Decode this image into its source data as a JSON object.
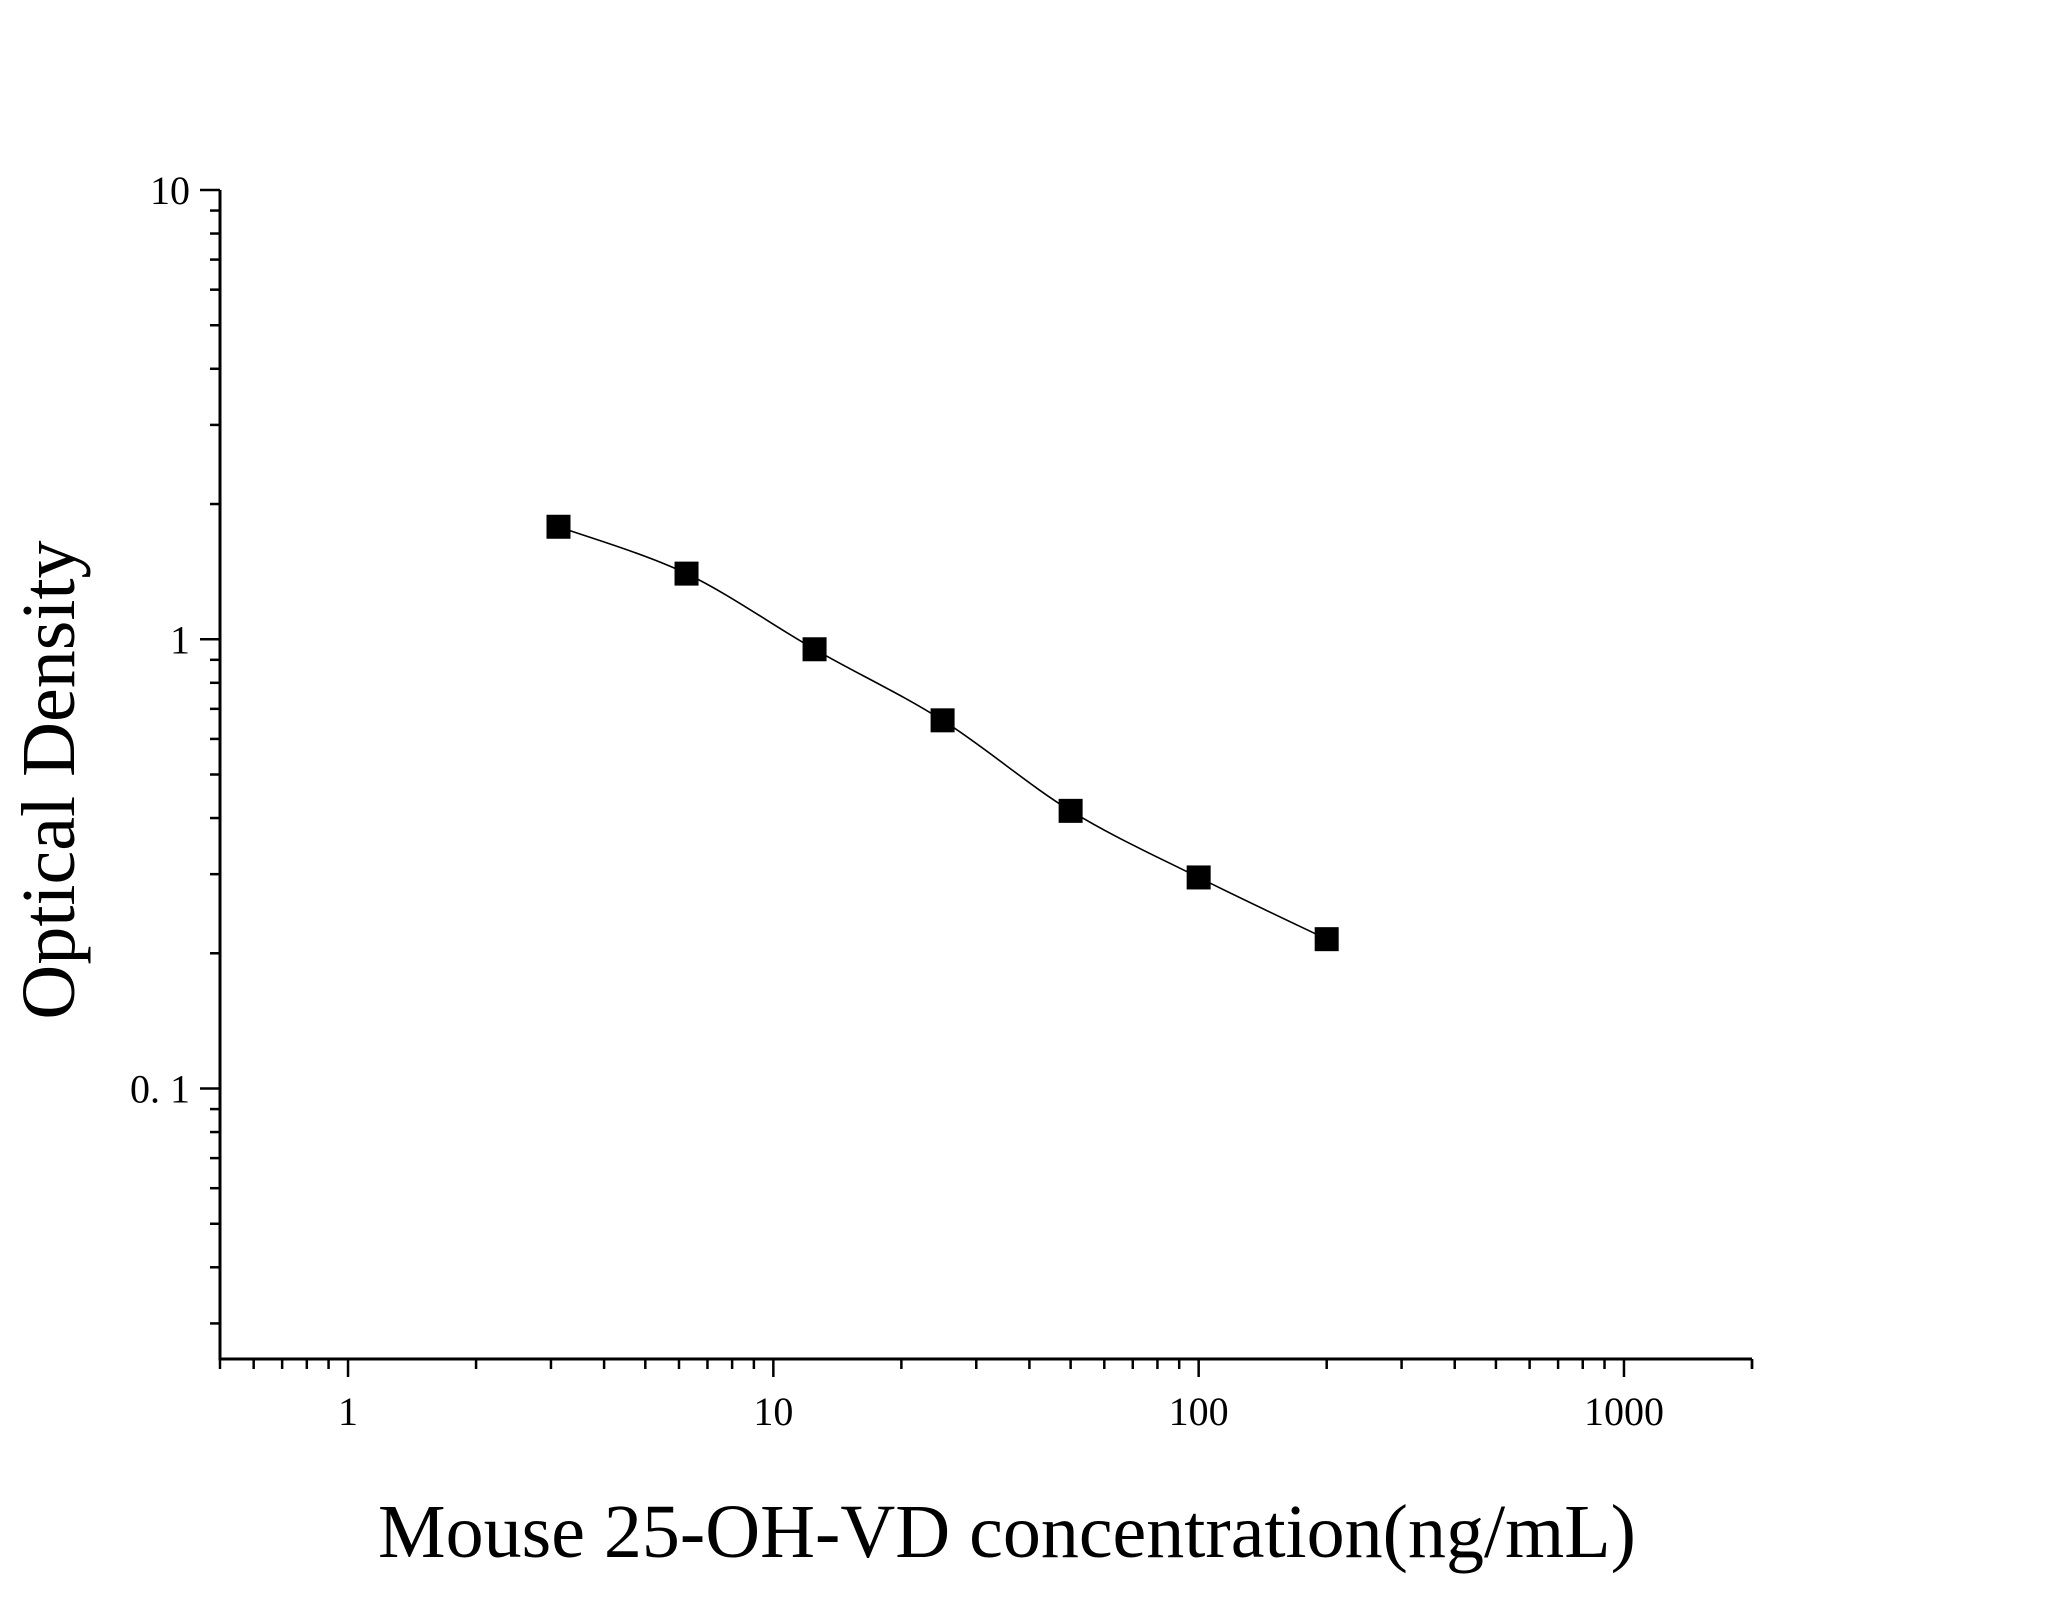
{
  "chart_data": {
    "type": "scatter",
    "title": "",
    "xlabel": "Mouse 25-OH-VD concentration(ng/mL)",
    "ylabel": "Optical Density",
    "x_scale": "log",
    "y_scale": "log",
    "xlim": [
      0.5,
      2000
    ],
    "ylim": [
      0.025,
      10
    ],
    "x_tick_labels": [
      {
        "value": 1,
        "label": "1"
      },
      {
        "value": 10,
        "label": "10"
      },
      {
        "value": 100,
        "label": "100"
      },
      {
        "value": 1000,
        "label": "1000"
      }
    ],
    "y_tick_labels": [
      {
        "value": 10,
        "label": "10"
      },
      {
        "value": 1,
        "label": "1"
      },
      {
        "value": 0.1,
        "label": "0. 1"
      }
    ],
    "grid": false,
    "legend": "none",
    "marker": "square",
    "fit_curve": true,
    "color": "#000000",
    "series": [
      {
        "x": [
          3.125,
          6.25,
          12.5,
          25,
          50,
          100,
          200
        ],
        "y": [
          1.78,
          1.4,
          0.95,
          0.66,
          0.415,
          0.295,
          0.215
        ]
      }
    ]
  }
}
